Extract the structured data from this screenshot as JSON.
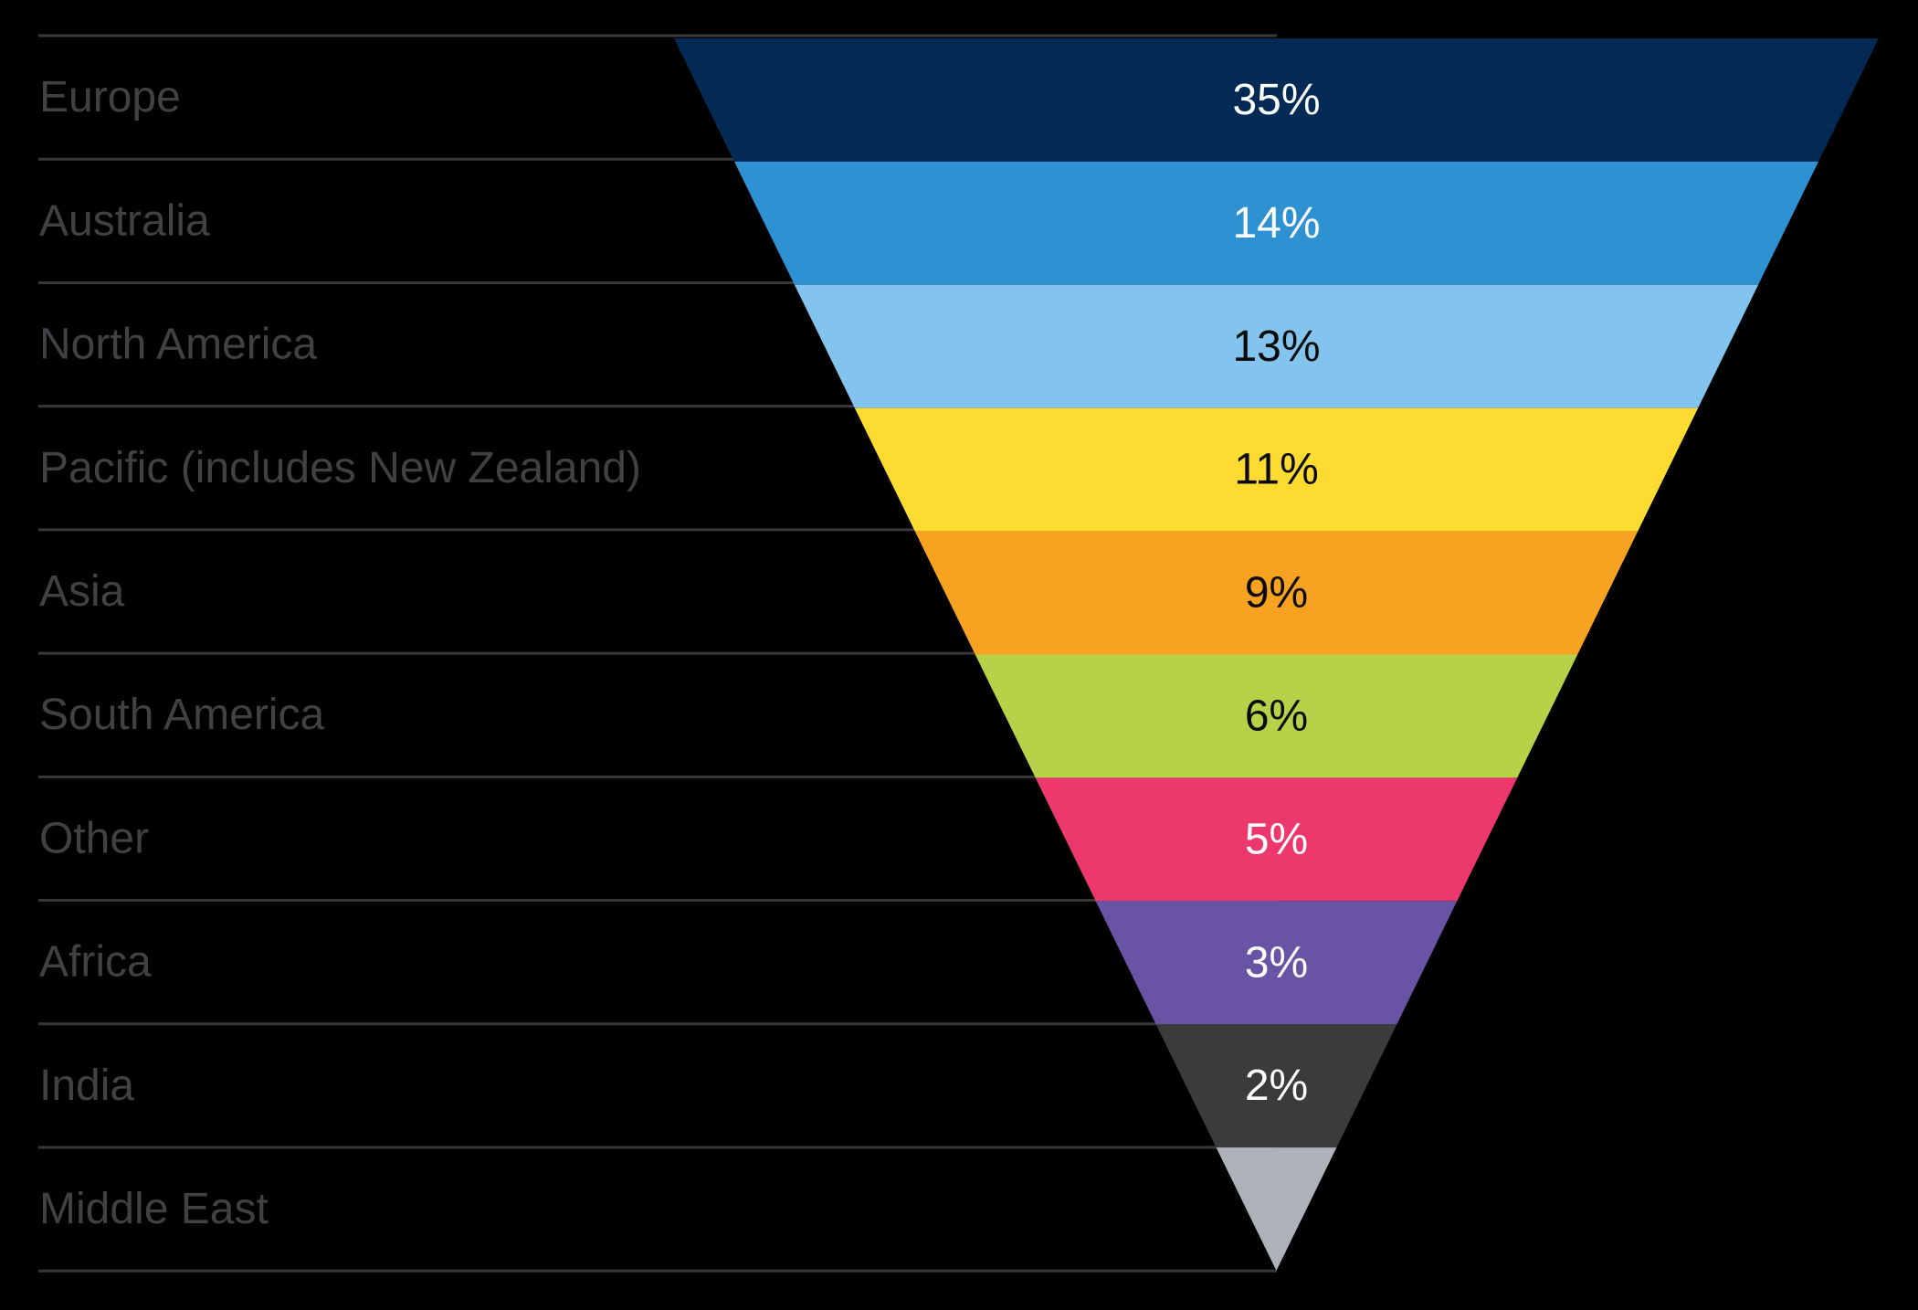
{
  "style": {
    "background": "#000000",
    "divider_color": "#38383A",
    "category_label_color": "#414144"
  },
  "chart_data": {
    "type": "funnel",
    "shape": "inverted-triangle",
    "title": "",
    "xlabel": "",
    "ylabel": "",
    "legend": "none",
    "grid": "row-divider-lines-only",
    "unit": "%",
    "categories": [
      "Europe",
      "Australia",
      "North America",
      "Pacific (includes New Zealand)",
      "Asia",
      "South America",
      "Other",
      "Africa",
      "India",
      "Middle East"
    ],
    "values": [
      35,
      14,
      13,
      11,
      9,
      6,
      5,
      3,
      2,
      null
    ],
    "segments": [
      {
        "label": "Europe",
        "value": 35,
        "value_label": "35%",
        "color": "#032A54",
        "value_text_color": "#FFFFFF"
      },
      {
        "label": "Australia",
        "value": 14,
        "value_label": "14%",
        "color": "#2E91D1",
        "value_text_color": "#FFFFFF"
      },
      {
        "label": "North America",
        "value": 13,
        "value_label": "13%",
        "color": "#83C4EF",
        "value_text_color": "#0A0A0A"
      },
      {
        "label": "Pacific (includes New Zealand)",
        "value": 11,
        "value_label": "11%",
        "color": "#FEDB31",
        "value_text_color": "#0A0A0A"
      },
      {
        "label": "Asia",
        "value": 9,
        "value_label": "9%",
        "color": "#F7A321",
        "value_text_color": "#0A0A0A"
      },
      {
        "label": "South America",
        "value": 6,
        "value_label": "6%",
        "color": "#B5D248",
        "value_text_color": "#0A0A0A"
      },
      {
        "label": "Other",
        "value": 5,
        "value_label": "5%",
        "color": "#ED386D",
        "value_text_color": "#FFFFFF"
      },
      {
        "label": "Africa",
        "value": 3,
        "value_label": "3%",
        "color": "#6853A4",
        "value_text_color": "#FFFFFF"
      },
      {
        "label": "India",
        "value": 2,
        "value_label": "2%",
        "color": "#3B3B3B",
        "value_text_color": "#FFFFFF"
      },
      {
        "label": "Middle East",
        "value": null,
        "value_label": "",
        "color": "#ADB2B8",
        "value_text_color": "#0A0A0A"
      }
    ]
  }
}
